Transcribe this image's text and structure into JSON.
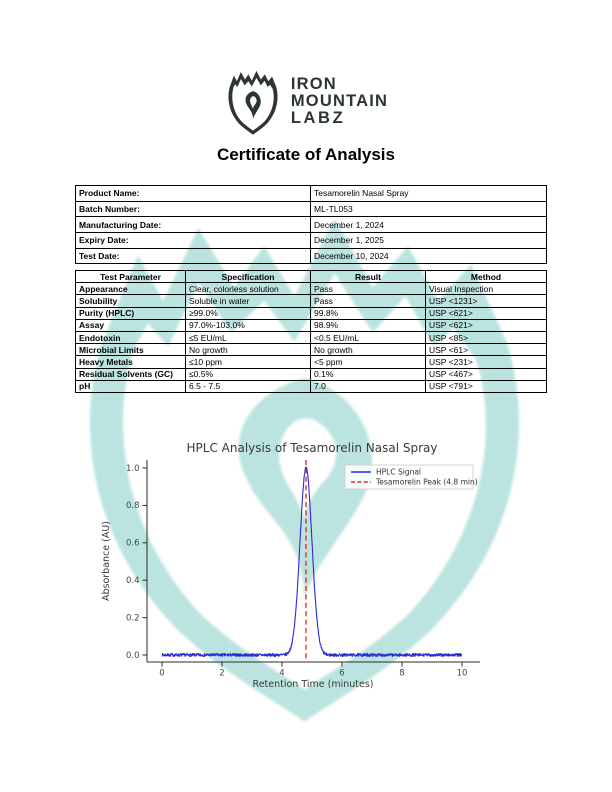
{
  "logo": {
    "brand_lines": [
      "IRON",
      "MOUNTAIN",
      "LABZ"
    ]
  },
  "title": "Certificate of Analysis",
  "product_info": {
    "rows": [
      {
        "label": "Product Name:",
        "value": "Tesamorelin Nasal Spray"
      },
      {
        "label": "Batch Number:",
        "value": "ML-TL053"
      },
      {
        "label": "Manufacturing Date:",
        "value": "December 1, 2024"
      },
      {
        "label": "Expiry Date:",
        "value": "December 1, 2025"
      },
      {
        "label": "Test Date:",
        "value": "December 10, 2024"
      }
    ]
  },
  "results_table": {
    "headers": [
      "Test Parameter",
      "Specification",
      "Result",
      "Method"
    ],
    "rows": [
      [
        "Appearance",
        "Clear, colorless solution",
        "Pass",
        "Visual Inspection"
      ],
      [
        "Solubility",
        "Soluble in water",
        "Pass",
        "USP <1231>"
      ],
      [
        "Purity (HPLC)",
        "≥99.0%",
        "99.8%",
        "USP <621>"
      ],
      [
        "Assay",
        "97.0%-103.0%",
        "98.9%",
        "USP <621>"
      ],
      [
        "Endotoxin",
        "≤5 EU/mL",
        "<0.5 EU/mL",
        "USP <85>"
      ],
      [
        "Microbial Limits",
        "No growth",
        "No growth",
        "USP <61>"
      ],
      [
        "Heavy Metals",
        "≤10 ppm",
        "<5 ppm",
        "USP <231>"
      ],
      [
        "Residual Solvents (GC)",
        "≤0.5%",
        "0.1%",
        "USP <467>"
      ],
      [
        "pH",
        "6.5 - 7.5",
        "7.0",
        "USP <791>"
      ]
    ]
  },
  "chart_data": {
    "type": "line",
    "title": "HPLC Analysis of Tesamorelin Nasal Spray",
    "xlabel": "Retention Time (minutes)",
    "ylabel": "Absorbance (AU)",
    "xlim": [
      0,
      10
    ],
    "ylim": [
      0,
      1.0
    ],
    "xticks": [
      0,
      2,
      4,
      6,
      8,
      10
    ],
    "yticks": [
      0.0,
      0.2,
      0.4,
      0.6,
      0.8,
      1.0
    ],
    "grid": false,
    "legend_position": "upper right",
    "legend": [
      {
        "label": "HPLC Signal",
        "color": "#2b2bd0",
        "style": "solid"
      },
      {
        "label": "Tesamorelin Peak (4.8 min)",
        "color": "#e03131",
        "style": "dashed"
      }
    ],
    "series": [
      {
        "name": "HPLC Signal",
        "peak_center": 4.8,
        "peak_height": 1.0,
        "peak_sigma": 0.2,
        "noise_amplitude": 0.008,
        "x_start": 0,
        "x_end": 10
      }
    ],
    "marker_line": {
      "x": 4.8,
      "color": "#e03131"
    }
  },
  "colors": {
    "brand_dark": "#2b3531",
    "watermark_teal": "#5fc0b6",
    "signal_blue": "#2b2bd0",
    "marker_red": "#e03131"
  }
}
